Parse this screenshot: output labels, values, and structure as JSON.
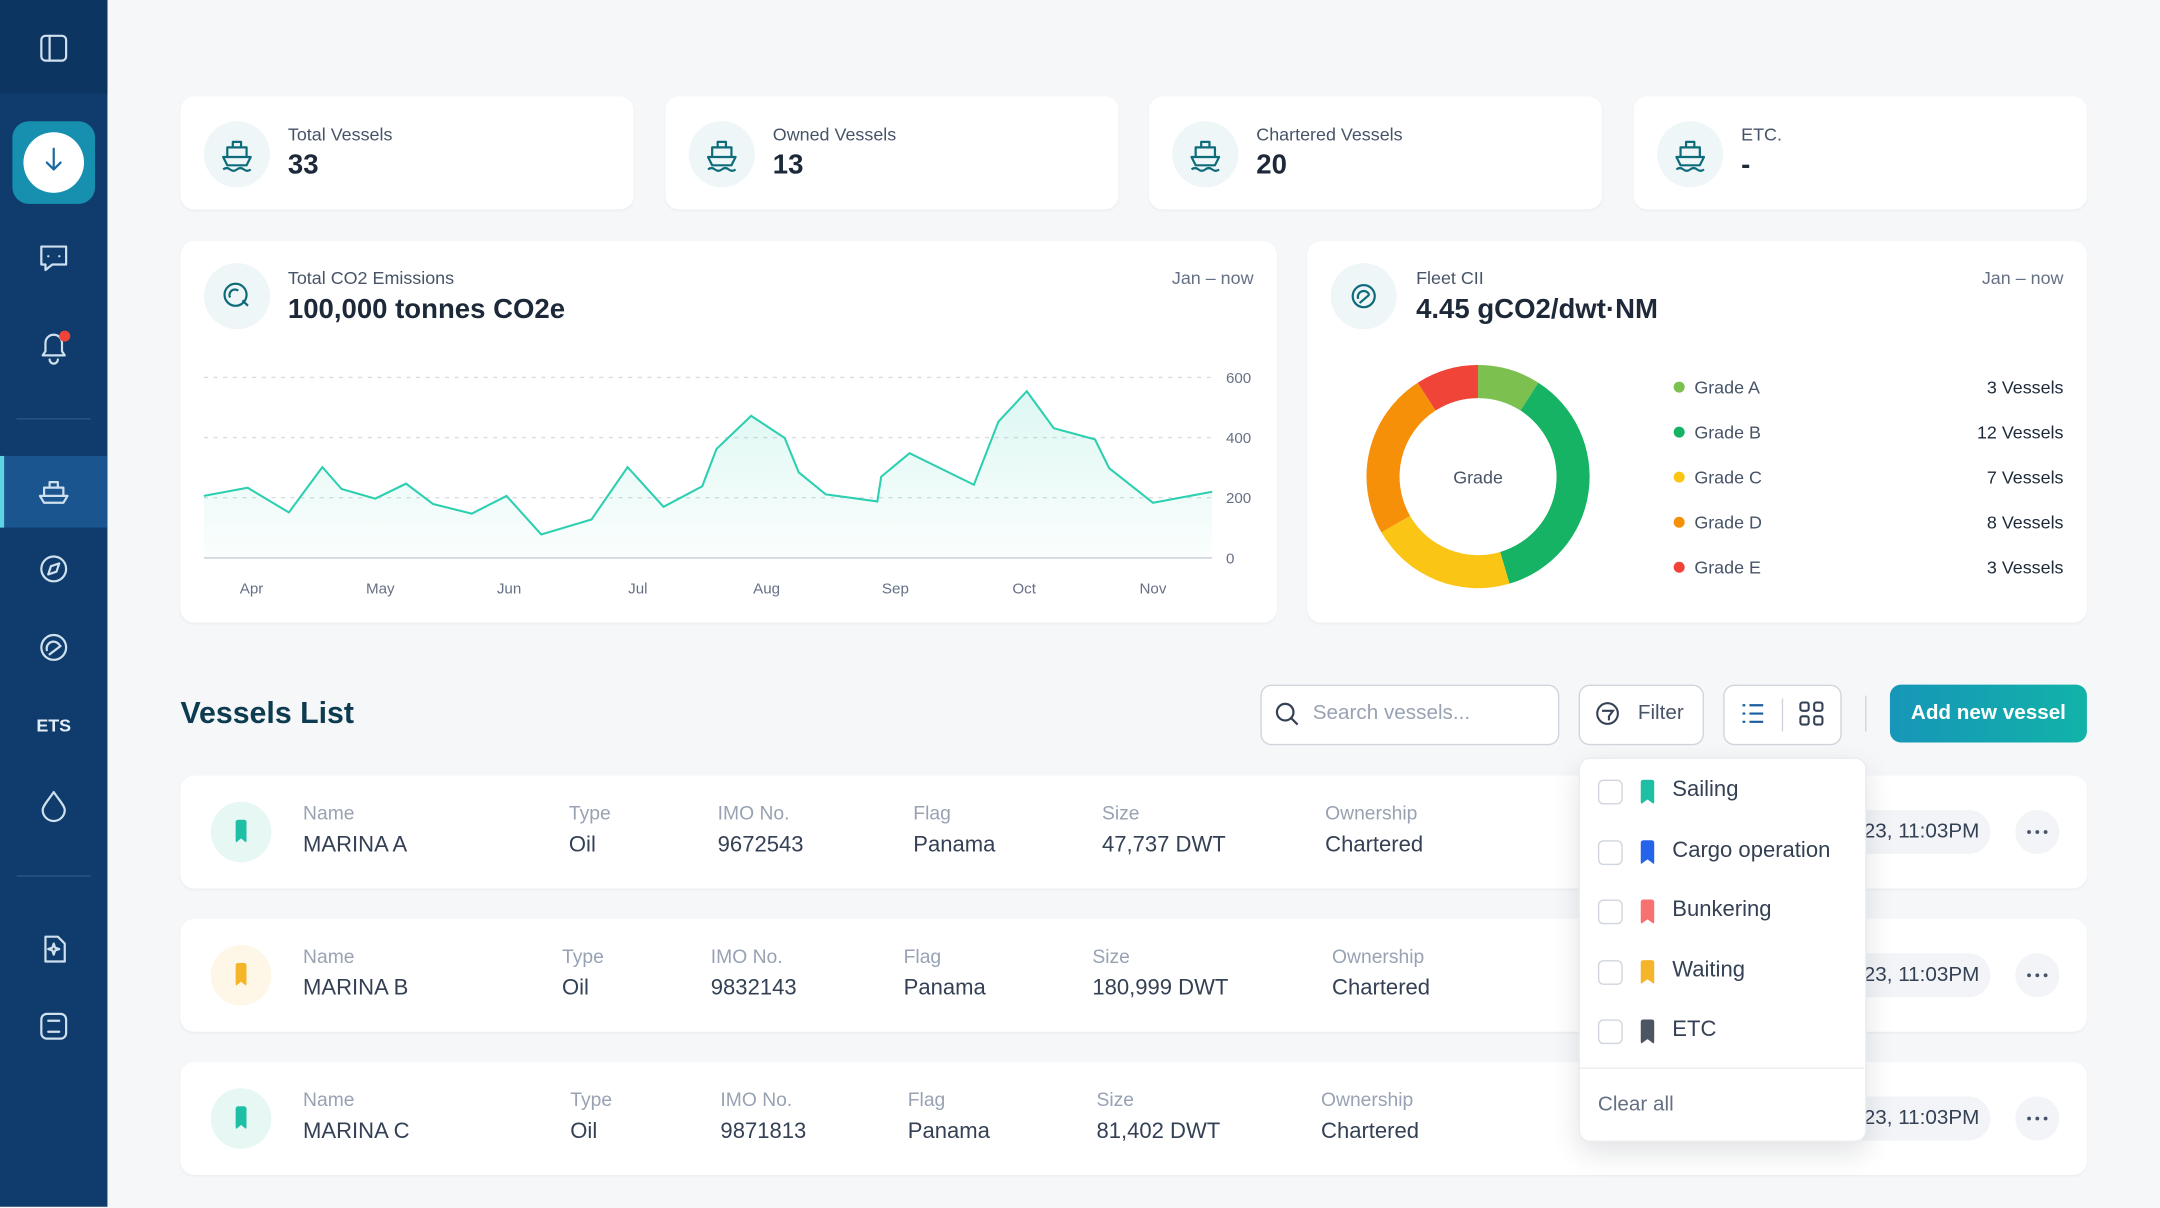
{
  "sidebar": {
    "ets_label": "ETS"
  },
  "stats": [
    {
      "label": "Total Vessels",
      "value": "33"
    },
    {
      "label": "Owned Vessels",
      "value": "13"
    },
    {
      "label": "Chartered Vessels",
      "value": "20"
    },
    {
      "label": "ETC.",
      "value": "-"
    }
  ],
  "chart_data": [
    {
      "type": "line",
      "title": "Total CO2 Emissions",
      "subtitle": "100,000 tonnes CO2e",
      "period": "Jan – now",
      "x": [
        -0.37,
        -0.03,
        0.29,
        0.55,
        0.7,
        0.96,
        1.2,
        1.41,
        1.71,
        1.98,
        2.25,
        2.64,
        2.92,
        3.2,
        3.5,
        3.61,
        3.88,
        4.14,
        4.25,
        4.46,
        4.86,
        4.89,
        5.11,
        5.61,
        5.8,
        6.02,
        6.23,
        6.55,
        6.66,
        7.0,
        7.46
      ],
      "series": [
        {
          "color": "#2ccfb0",
          "values": [
            206,
            233,
            151,
            302,
            229,
            197,
            247,
            179,
            147,
            206,
            78,
            128,
            302,
            170,
            238,
            362,
            472,
            399,
            284,
            211,
            188,
            270,
            348,
            243,
            453,
            554,
            431,
            394,
            298,
            183,
            220
          ]
        }
      ],
      "xlim": [
        -0.37,
        7.46
      ],
      "xticks": [
        {
          "value": 0,
          "label": "Apr"
        },
        {
          "value": 1,
          "label": "May"
        },
        {
          "value": 2,
          "label": "Jun"
        },
        {
          "value": 3,
          "label": "Jul"
        },
        {
          "value": 4,
          "label": "Aug"
        },
        {
          "value": 5,
          "label": "Sep"
        },
        {
          "value": 6,
          "label": "Oct"
        },
        {
          "value": 7,
          "label": "Nov"
        }
      ],
      "ylim": [
        0,
        600
      ],
      "yticks": [
        0,
        200,
        400,
        600
      ],
      "grid": true
    },
    {
      "type": "pie",
      "title": "Fleet CII",
      "subtitle": "4.45 gCO2/dwt·NM",
      "period": "Jan – now",
      "center_label": "Grade",
      "donut": true,
      "categories": [
        "Grade A",
        "Grade B",
        "Grade C",
        "Grade D",
        "Grade E"
      ],
      "values": [
        3,
        12,
        7,
        8,
        3
      ],
      "value_labels": [
        "3 Vessels",
        "12 Vessels",
        "7 Vessels",
        "8 Vessels",
        "3 Vessels"
      ],
      "colors": [
        "#7cc04f",
        "#16b364",
        "#fac515",
        "#f79009",
        "#f04438"
      ]
    }
  ],
  "vessels_list": {
    "title": "Vessels List",
    "search_placeholder": "Search vessels...",
    "filter_label": "Filter",
    "add_button": "Add new vessel",
    "rows": [
      {
        "name_label": "Name",
        "name": "MARINA A",
        "type_label": "Type",
        "type": "Oil",
        "imo_label": "IMO No.",
        "imo": "9672543",
        "flag_label": "Flag",
        "flag": "Panama",
        "size_label": "Size",
        "size": "47,737 DWT",
        "ownership_label": "Ownership",
        "ownership": "Chartered",
        "time": "23, 11:03PM"
      },
      {
        "name_label": "Name",
        "name": "MARINA B",
        "type_label": "Type",
        "type": "Oil",
        "imo_label": "IMO No.",
        "imo": "9832143",
        "flag_label": "Flag",
        "flag": "Panama",
        "size_label": "Size",
        "size": "180,999 DWT",
        "ownership_label": "Ownership",
        "ownership": "Chartered",
        "time": "23, 11:03PM"
      },
      {
        "name_label": "Name",
        "name": "MARINA C",
        "type_label": "Type",
        "type": "Oil",
        "imo_label": "IMO No.",
        "imo": "9871813",
        "flag_label": "Flag",
        "flag": "Panama",
        "size_label": "Size",
        "size": "81,402 DWT",
        "ownership_label": "Ownership",
        "ownership": "Chartered",
        "time": "23, 11:03PM"
      }
    ]
  },
  "filter_menu": {
    "options": [
      "Sailing",
      "Cargo operation",
      "Bunkering",
      "Waiting",
      "ETC"
    ],
    "clear": "Clear all"
  }
}
